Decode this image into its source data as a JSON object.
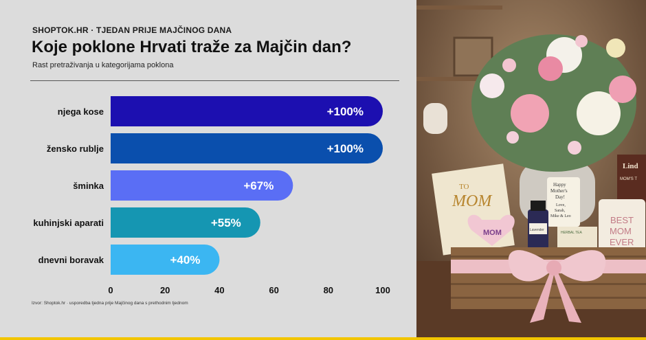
{
  "header": {
    "eyebrow": "SHOPTOK.HR · TJEDAN PRIJE MAJČINOG DANA",
    "title": "Koje poklone Hrvati traže za Majčin dan?",
    "subtitle": "Rast pretraživanja u kategorijama poklona"
  },
  "footer": {
    "source": "Izvor: Shoptok.hr · usporedba tjedna prije Majčinog dana s prethodnim tjednom"
  },
  "chart_data": {
    "type": "bar",
    "orientation": "horizontal",
    "categories": [
      "njega kose",
      "žensko rublje",
      "šminka",
      "kuhinjski aparati",
      "dnevni boravak"
    ],
    "values": [
      100,
      100,
      67,
      55,
      40
    ],
    "data_labels": [
      "+100%",
      "+100%",
      "+67%",
      "+55%",
      "+40%"
    ],
    "colors": [
      "#1c0fb0",
      "#0a4fad",
      "#5a6ef5",
      "#1596b2",
      "#3bb6f2"
    ],
    "xlim": [
      0,
      100
    ],
    "xticks": [
      0,
      20,
      40,
      60,
      80,
      100
    ],
    "grid": false,
    "legend": "none"
  },
  "photo": {
    "card_to": "TO",
    "card_mom": "MOM",
    "heart_text": "MOM",
    "tag_text": [
      "Happy",
      "Mother's",
      "Day!",
      "Love,",
      "Sarah,",
      "Mike & Leo"
    ],
    "tea_text": "HERBAL TEA",
    "mug_text": [
      "BEST",
      "MOM",
      "EVER"
    ],
    "choc_text": [
      "Lind",
      "MOM'S T"
    ],
    "bottle_text": "Lavender"
  }
}
